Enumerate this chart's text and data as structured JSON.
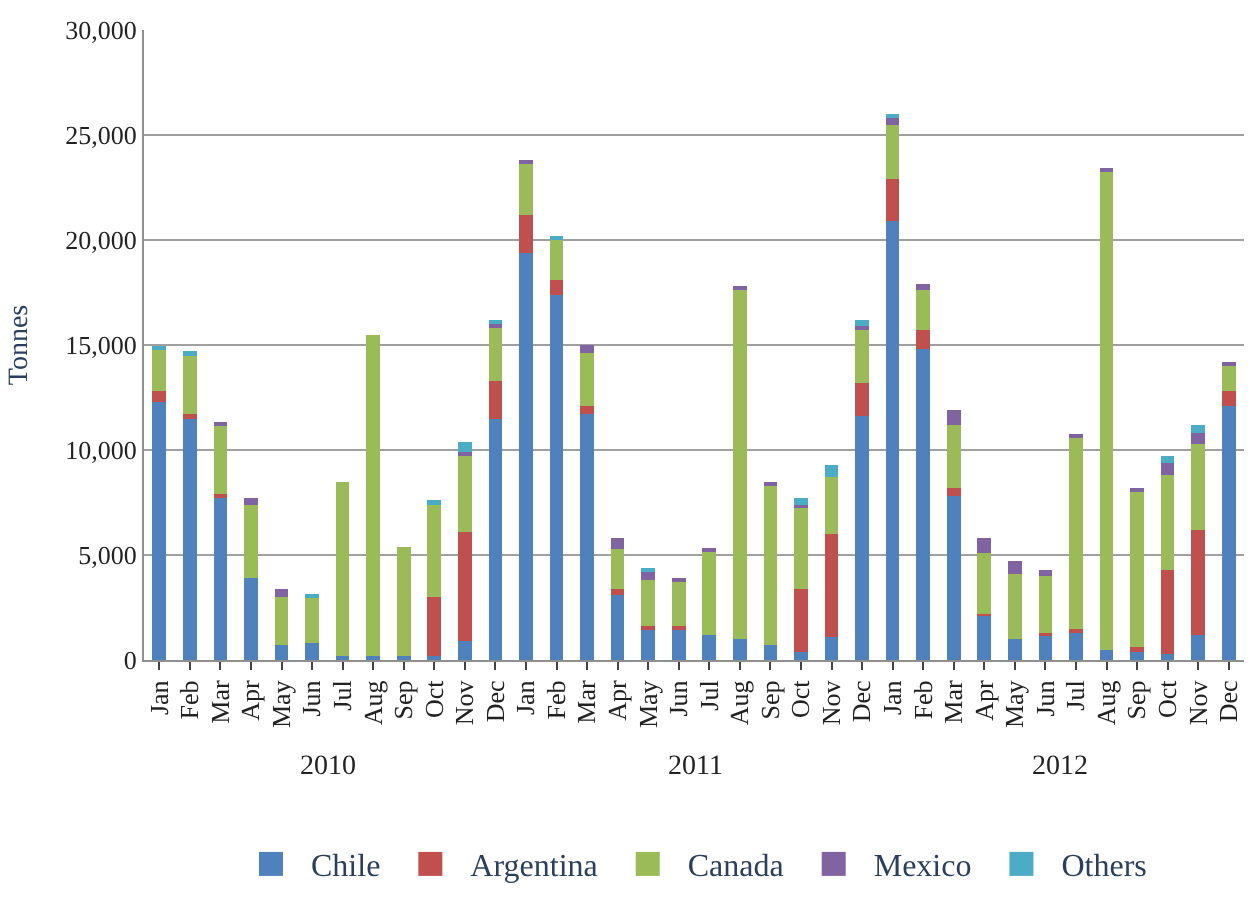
{
  "chart_data": {
    "type": "bar",
    "stacked": true,
    "ylabel": "Tonnes",
    "categories": [
      "Jan",
      "Feb",
      "Mar",
      "Apr",
      "May",
      "Jun",
      "Jul",
      "Aug",
      "Sep",
      "Oct",
      "Nov",
      "Dec",
      "Jan",
      "Feb",
      "Mar",
      "Apr",
      "May",
      "Jun",
      "Jul",
      "Aug",
      "Sep",
      "Oct",
      "Nov",
      "Dec",
      "Jan",
      "Feb",
      "Mar",
      "Apr",
      "May",
      "Jun",
      "Jul",
      "Aug",
      "Sep",
      "Oct",
      "Nov",
      "Dec"
    ],
    "series": [
      {
        "name": "Chile",
        "color": "#4f81bd",
        "values": [
          12300,
          11500,
          7700,
          3900,
          700,
          800,
          200,
          200,
          200,
          200,
          900,
          11500,
          19400,
          17400,
          11700,
          3100,
          1500,
          1500,
          1200,
          1000,
          700,
          400,
          1100,
          11600,
          20900,
          14800,
          7800,
          2100,
          1000,
          1200,
          1300,
          500,
          400,
          300,
          1200,
          12100
        ]
      },
      {
        "name": "Argentina",
        "color": "#c0504d",
        "values": [
          500,
          200,
          200,
          0,
          0,
          0,
          0,
          0,
          0,
          2800,
          5200,
          1800,
          1800,
          700,
          400,
          300,
          100,
          100,
          0,
          0,
          0,
          3000,
          4900,
          1600,
          2000,
          900,
          400,
          100,
          0,
          100,
          200,
          0,
          200,
          4000,
          5000,
          700
        ]
      },
      {
        "name": "Canada",
        "color": "#9bbb59",
        "values": [
          2000,
          2800,
          3300,
          3500,
          2300,
          2200,
          8300,
          15300,
          5200,
          4400,
          3700,
          2600,
          2500,
          1900,
          2500,
          1900,
          2200,
          2100,
          4000,
          16700,
          7600,
          3900,
          2700,
          2600,
          2600,
          1900,
          3000,
          2900,
          3100,
          2700,
          9100,
          22800,
          7400,
          4500,
          4100,
          1200
        ]
      },
      {
        "name": "Mexico",
        "color": "#8064a2",
        "values": [
          0,
          0,
          100,
          300,
          400,
          0,
          0,
          0,
          0,
          0,
          100,
          100,
          100,
          0,
          400,
          500,
          400,
          200,
          100,
          100,
          100,
          100,
          0,
          100,
          300,
          300,
          700,
          700,
          600,
          300,
          100,
          100,
          100,
          600,
          500,
          200
        ]
      },
      {
        "name": "Others",
        "color": "#4bacc6",
        "values": [
          100,
          200,
          0,
          0,
          0,
          100,
          0,
          0,
          0,
          200,
          500,
          200,
          0,
          200,
          0,
          0,
          200,
          0,
          0,
          0,
          0,
          300,
          600,
          300,
          200,
          0,
          0,
          0,
          0,
          0,
          0,
          0,
          0,
          300,
          400,
          0
        ]
      }
    ],
    "ylim": [
      0,
      30000
    ],
    "yticks": [
      0,
      {
        "value": 5000,
        "label": "5,000"
      },
      {
        "value": 10000,
        "label": "10,000"
      },
      {
        "value": 15000,
        "label": "15,000"
      },
      {
        "value": 20000,
        "label": "20,000"
      },
      {
        "value": 25000,
        "label": "25,000"
      },
      {
        "value": 30000,
        "label": "30,000"
      }
    ],
    "annotations": [
      "2010",
      "2011",
      "2012"
    ],
    "grid": "y",
    "legend": "bottom"
  }
}
